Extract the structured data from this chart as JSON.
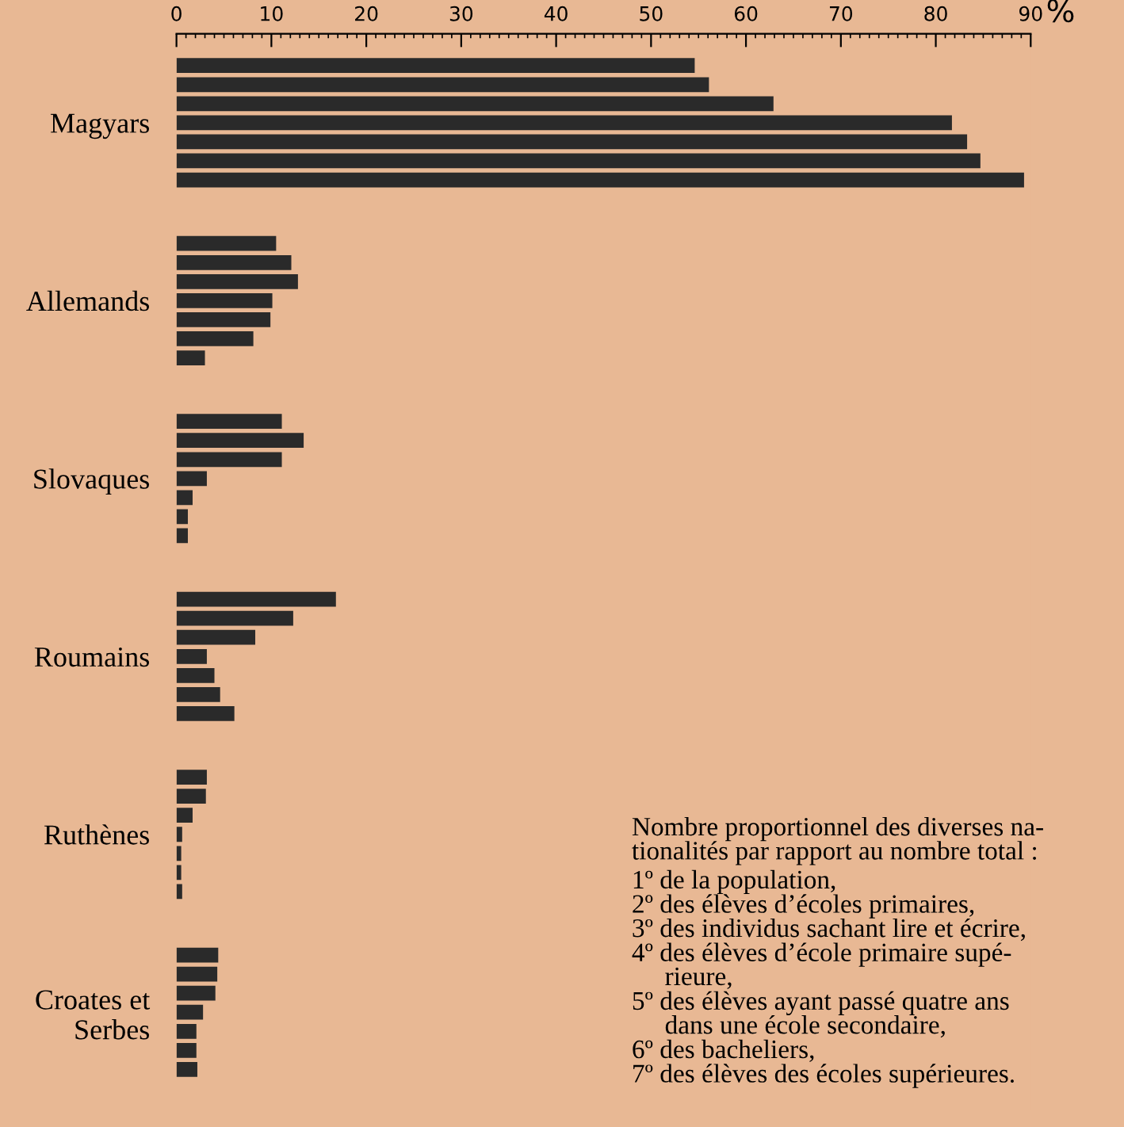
{
  "chart_data": {
    "type": "bar",
    "orientation": "horizontal",
    "categories": [
      "Magyars",
      "Allemands",
      "Slovaques",
      "Roumains",
      "Ruthènes",
      "Croates et\nSerbes"
    ],
    "series": [
      {
        "color": "#2a2a2a",
        "values": [
          54.6,
          10.5,
          11.1,
          16.8,
          3.2,
          4.4
        ]
      },
      {
        "color": "#2a2a2a",
        "values": [
          56.1,
          12.1,
          13.4,
          12.3,
          3.1,
          4.3
        ]
      },
      {
        "color": "#2a2a2a",
        "values": [
          62.9,
          12.8,
          11.1,
          8.3,
          1.7,
          4.1
        ]
      },
      {
        "color": "#2a2a2a",
        "values": [
          81.7,
          10.1,
          3.2,
          3.2,
          0.6,
          2.8
        ]
      },
      {
        "color": "#2a2a2a",
        "values": [
          83.3,
          9.9,
          1.7,
          4.0,
          0.5,
          2.1
        ]
      },
      {
        "color": "#2a2a2a",
        "values": [
          84.7,
          8.1,
          1.2,
          4.6,
          0.5,
          2.1
        ]
      },
      {
        "color": "#2a2a2a",
        "values": [
          89.3,
          3.0,
          1.2,
          6.1,
          0.6,
          2.2
        ]
      }
    ],
    "xlim": [
      0,
      90
    ],
    "xticks": [
      0,
      10,
      20,
      30,
      40,
      50,
      60,
      70,
      80,
      90
    ],
    "xlabel": "%",
    "grid": false,
    "legend": false,
    "annotations": [
      "Nombre proportionnel des diverses na-\ntionalités par rapport au nombre total :",
      "1º de la population,",
      "2º des élèves d’écoles primaires,",
      "3º des individus sachant lire et écrire,",
      "4º des élèves d’école primaire supé-\n     rieure,",
      "5º des élèves ayant passé quatre ans\n     dans une école secondaire,",
      "6º des bacheliers,",
      "7º des élèves des écoles supérieures."
    ]
  }
}
